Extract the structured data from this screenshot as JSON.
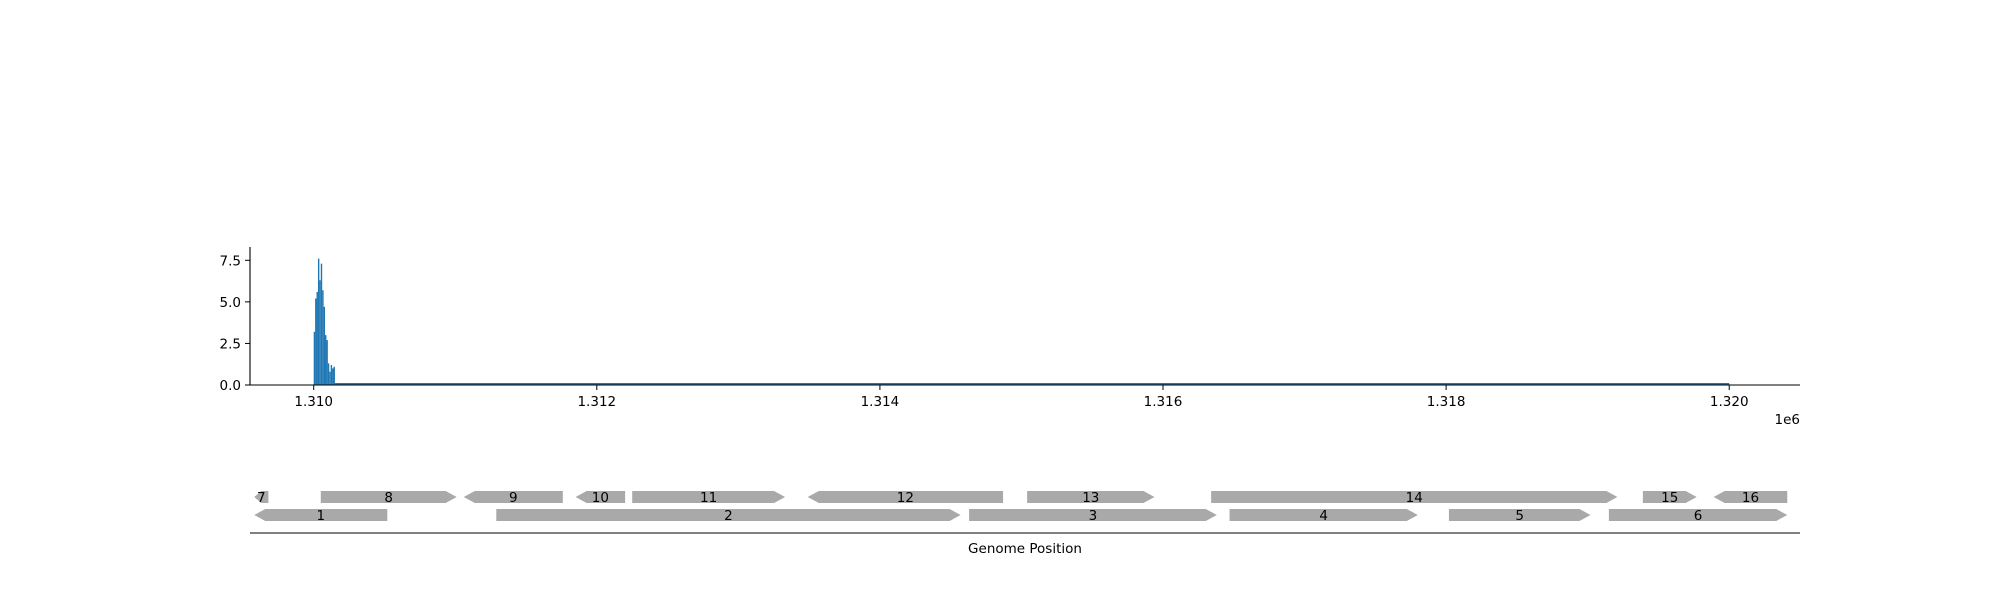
{
  "chart_data": [
    {
      "type": "bar",
      "title": "",
      "xlabel": "",
      "ylabel": "",
      "x_offset_label": "1e6",
      "xlim": [
        1.30955,
        1.3205
      ],
      "ylim": [
        0,
        8.3
      ],
      "xticks": [
        1.31,
        1.312,
        1.314,
        1.316,
        1.318,
        1.32
      ],
      "xtick_labels": [
        "1.310",
        "1.312",
        "1.314",
        "1.316",
        "1.318",
        "1.320"
      ],
      "yticks": [
        0.0,
        2.5,
        5.0,
        7.5
      ],
      "ytick_labels": [
        "0.0",
        "2.5",
        "5.0",
        "7.5"
      ],
      "color": "#1f77b4",
      "bin_width": 1e-05,
      "baseline_end": 1.32,
      "bars": [
        {
          "x": 1.31,
          "y": 3.2
        },
        {
          "x": 1.31001,
          "y": 5.2
        },
        {
          "x": 1.31002,
          "y": 5.6
        },
        {
          "x": 1.31003,
          "y": 7.6
        },
        {
          "x": 1.31004,
          "y": 6.3
        },
        {
          "x": 1.31005,
          "y": 7.3
        },
        {
          "x": 1.31006,
          "y": 5.7
        },
        {
          "x": 1.31007,
          "y": 4.7
        },
        {
          "x": 1.31008,
          "y": 3.0
        },
        {
          "x": 1.31009,
          "y": 2.7
        },
        {
          "x": 1.3101,
          "y": 1.3
        },
        {
          "x": 1.31011,
          "y": 0.8
        },
        {
          "x": 1.31012,
          "y": 1.2
        },
        {
          "x": 1.31013,
          "y": 1.0
        },
        {
          "x": 1.31014,
          "y": 1.1
        }
      ]
    },
    {
      "type": "gene-track",
      "xlabel": "Genome Position",
      "color": "#a9a9a9",
      "genes": [
        {
          "label": "7",
          "start": 1.30958,
          "end": 1.30968,
          "strand": "-",
          "row": 1
        },
        {
          "label": "8",
          "start": 1.31005,
          "end": 1.31101,
          "strand": "+",
          "row": 1
        },
        {
          "label": "9",
          "start": 1.31106,
          "end": 1.31176,
          "strand": "-",
          "row": 1
        },
        {
          "label": "10",
          "start": 1.31185,
          "end": 1.3122,
          "strand": "-",
          "row": 1
        },
        {
          "label": "11",
          "start": 1.31225,
          "end": 1.31333,
          "strand": "+",
          "row": 1
        },
        {
          "label": "12",
          "start": 1.31349,
          "end": 1.31487,
          "strand": "-",
          "row": 1
        },
        {
          "label": "13",
          "start": 1.31504,
          "end": 1.31594,
          "strand": "+",
          "row": 1
        },
        {
          "label": "14",
          "start": 1.31634,
          "end": 1.31921,
          "strand": "+",
          "row": 1
        },
        {
          "label": "15",
          "start": 1.31939,
          "end": 1.31977,
          "strand": "+",
          "row": 1
        },
        {
          "label": "16",
          "start": 1.31989,
          "end": 1.32041,
          "strand": "-",
          "row": 1
        },
        {
          "label": "1",
          "start": 1.30958,
          "end": 1.31052,
          "strand": "-",
          "row": 0
        },
        {
          "label": "2",
          "start": 1.31129,
          "end": 1.31457,
          "strand": "+",
          "row": 0
        },
        {
          "label": "3",
          "start": 1.31463,
          "end": 1.31638,
          "strand": "+",
          "row": 0
        },
        {
          "label": "4",
          "start": 1.31647,
          "end": 1.3178,
          "strand": "+",
          "row": 0
        },
        {
          "label": "5",
          "start": 1.31802,
          "end": 1.31902,
          "strand": "+",
          "row": 0
        },
        {
          "label": "6",
          "start": 1.31915,
          "end": 1.32041,
          "strand": "+",
          "row": 0
        }
      ]
    }
  ]
}
